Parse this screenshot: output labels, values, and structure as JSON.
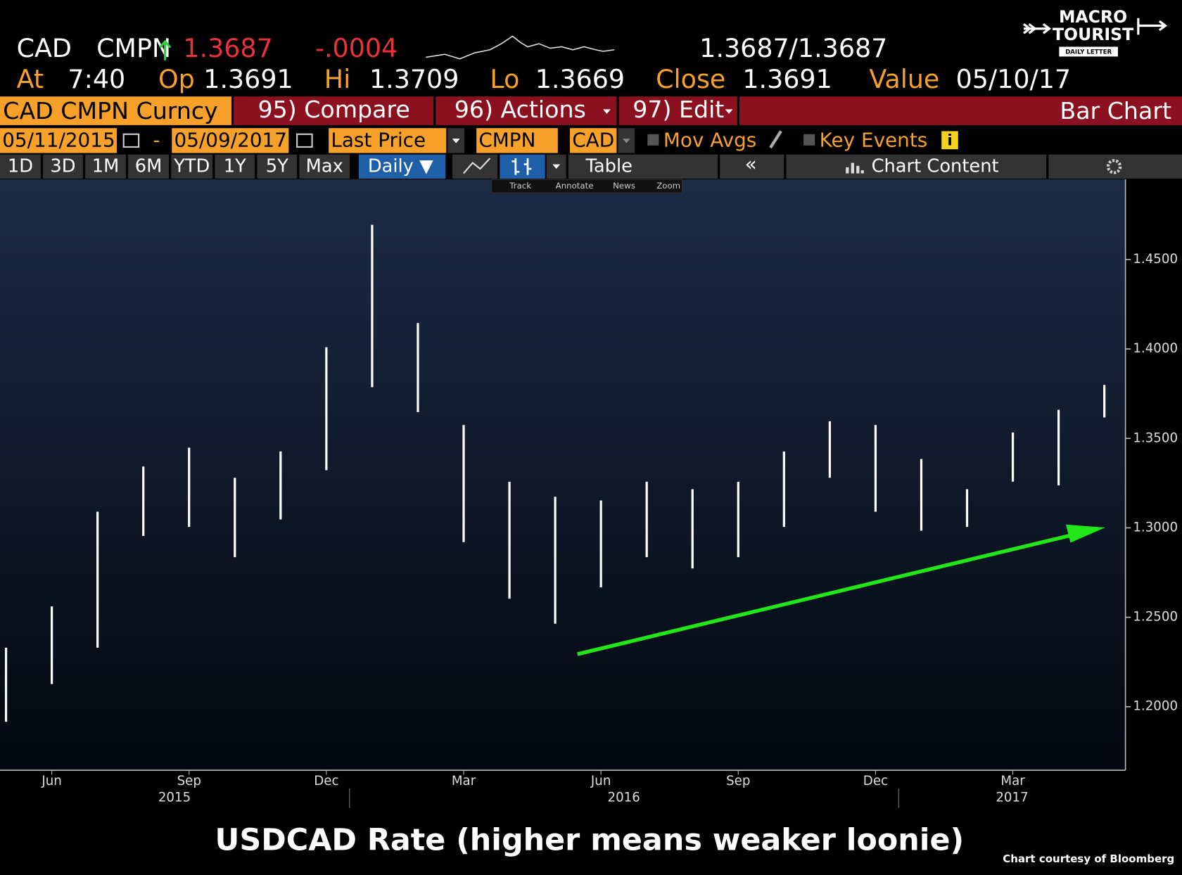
{
  "terminal": {
    "ticker": "CAD",
    "source": "CMPN",
    "last": "1.3687",
    "change": "-.0004",
    "bid_ask": "1.3687/1.3687",
    "at_label": "At",
    "time": "7:40",
    "open_label": "Op",
    "open": "1.3691",
    "high_label": "Hi",
    "high": "1.3709",
    "low_label": "Lo",
    "low": "1.3669",
    "close_label": "Close",
    "close": "1.3691",
    "value_label": "Value",
    "value_date": "05/10/17",
    "security": "CAD CMPN Curncy",
    "menu": [
      "95) Compare",
      "96) Actions",
      "97) Edit"
    ],
    "view": "Bar Chart",
    "start_date": "05/11/2015",
    "end_date": "05/09/2017",
    "field": "Last Price",
    "pricing_source": "CMPN",
    "currency": "CAD",
    "options": [
      "Mov Avgs",
      "Key Events"
    ],
    "periods": [
      "1D",
      "3D",
      "1M",
      "6M",
      "YTD",
      "1Y",
      "5Y",
      "Max"
    ],
    "frequency": "Daily ▼",
    "table": "Table",
    "content": "Chart Content",
    "tools": [
      "Track",
      "Annotate",
      "News",
      "Zoom"
    ]
  },
  "logo": {
    "line1": "MACRO",
    "line2": "TOURIST",
    "line3": "DAILY LETTER"
  },
  "chart_data": {
    "type": "range_bar",
    "title": "USDCAD Rate (higher means weaker loonie)",
    "x": [
      "2015-05",
      "2015-06",
      "2015-07",
      "2015-08",
      "2015-09",
      "2015-10",
      "2015-11",
      "2015-12",
      "2016-01",
      "2016-02",
      "2016-03",
      "2016-04",
      "2016-05",
      "2016-06",
      "2016-07",
      "2016-08",
      "2016-09",
      "2016-10",
      "2016-11",
      "2016-12",
      "2017-01",
      "2017-02",
      "2017-03",
      "2017-04",
      "2017-05"
    ],
    "series": [
      {
        "color": "#ffffff",
        "high": [
          1.233,
          1.2561,
          1.309,
          1.3343,
          1.3448,
          1.328,
          1.3427,
          1.401,
          1.4694,
          1.4145,
          1.3575,
          1.3258,
          1.3174,
          1.3153,
          1.3258,
          1.3216,
          1.3258,
          1.3427,
          1.3596,
          1.3575,
          1.3385,
          1.3216,
          1.3533,
          1.366,
          1.3799
        ],
        "low": [
          1.1916,
          1.2127,
          1.233,
          1.2955,
          1.3005,
          1.2836,
          1.3047,
          1.3322,
          1.3786,
          1.3647,
          1.292,
          1.2604,
          1.2464,
          1.2667,
          1.2836,
          1.2773,
          1.2836,
          1.3005,
          1.328,
          1.309,
          1.2984,
          1.3005,
          1.3258,
          1.3237,
          1.3617
        ]
      }
    ],
    "ylim": [
      1.1645,
      1.4948
    ],
    "yticks": [
      {
        "value": 1.2,
        "label": "1.2000"
      },
      {
        "value": 1.25,
        "label": "1.2500"
      },
      {
        "value": 1.3,
        "label": "1.3000"
      },
      {
        "value": 1.35,
        "label": "1.3500"
      },
      {
        "value": 1.4,
        "label": "1.4000"
      },
      {
        "value": 1.45,
        "label": "1.4500"
      }
    ],
    "xticks": [
      {
        "value": "2015-06",
        "label": "Jun"
      },
      {
        "value": "2015-09",
        "label": "Sep"
      },
      {
        "value": "2015-12",
        "label": "Dec"
      },
      {
        "value": "2016-03",
        "label": "Mar"
      },
      {
        "value": "2016-06",
        "label": "Jun"
      },
      {
        "value": "2016-09",
        "label": "Sep"
      },
      {
        "value": "2016-12",
        "label": "Dec"
      },
      {
        "value": "2017-03",
        "label": "Mar"
      }
    ],
    "years": [
      "2015",
      "2016",
      "2017"
    ],
    "credit": "Chart courtesy of Bloomberg"
  }
}
